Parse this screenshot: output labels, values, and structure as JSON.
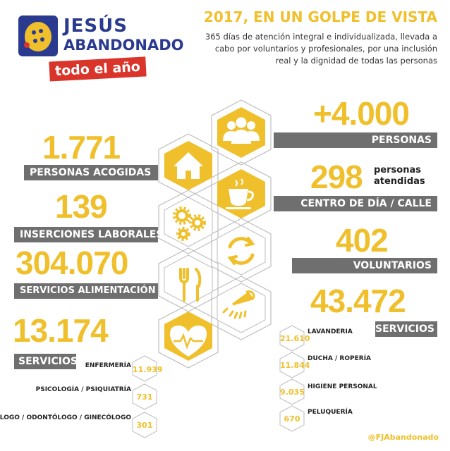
{
  "brand": {
    "name_line1": "JESÚS",
    "name_line2": "ABANDONADO",
    "tagline": "todo el año",
    "colors": {
      "blue": "#2a3a8f",
      "red": "#d9352b",
      "yellow": "#f0c02c",
      "grey": "#6f6f6f"
    }
  },
  "header": {
    "title": "2017, EN UN GOLPE DE VISTA",
    "subtitle_lines": [
      "365 días de atención integral e individualizada, llevada a",
      "cabo por voluntarios y profesionales, por una inclusión",
      "real y la dignidad de todas las personas"
    ]
  },
  "stats": {
    "personas": {
      "value": "+4.000",
      "label": "PERSONAS"
    },
    "acogidas": {
      "value": "1.771",
      "label": "PERSONAS ACOGIDAS"
    },
    "centro": {
      "value": "298",
      "note_line1": "personas",
      "note_line2": "atendidas",
      "label": "CENTRO DE DÍA / CALLE"
    },
    "inserciones": {
      "value": "139",
      "label": "INSERCIONES LABORALES"
    },
    "voluntarios": {
      "value": "402",
      "label": "VOLUNTARIOS"
    },
    "alimentacion": {
      "value": "304.070",
      "label": "SERVICIOS ALIMENTACIÓN"
    },
    "servicios_right": {
      "value": "43.472",
      "label": "SERVICIOS"
    },
    "servicios_left": {
      "value": "13.174",
      "label": "SERVICIOS"
    }
  },
  "health_services": [
    {
      "label": "ENFERMERÍA",
      "value": "11.939"
    },
    {
      "label": "PSICOLOGÍA / PSIQUIATRÍA",
      "value": "731"
    },
    {
      "label": "PODÓLOGO / ODONTÓLOGO / GINECÓLOGO",
      "value": "301"
    }
  ],
  "hygiene_services": [
    {
      "label": "LAVANDERIA",
      "value": "21.610"
    },
    {
      "label": "DUCHA / ROPERÍA",
      "value": "11.844"
    },
    {
      "label": "HIGIENE PERSONAL",
      "value": "9.035"
    },
    {
      "label": "PELUQUERÍA",
      "value": "670"
    }
  ],
  "icons": [
    "people-icon",
    "house-icon",
    "coffee-cup-icon",
    "gears-icon",
    "recycle-arrows-icon",
    "cutlery-icon",
    "shower-icon",
    "heart-pulse-icon"
  ],
  "footer": {
    "handle": "@FJAbandonado"
  }
}
